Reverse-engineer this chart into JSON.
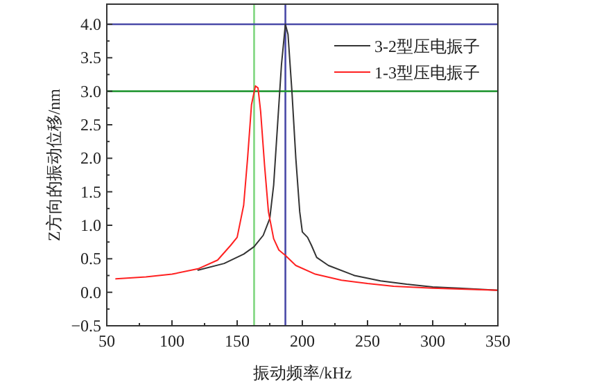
{
  "chart_data": {
    "type": "line",
    "xlabel": "振动频率/kHz",
    "ylabel": "Z方向的振动位移/nm",
    "xlim": [
      50,
      350
    ],
    "xticks": [
      50,
      100,
      150,
      200,
      250,
      300,
      350
    ],
    "ylim": [
      -0.5,
      4.3
    ],
    "yticks": [
      {
        "value": -0.5,
        "label": "−0.5"
      },
      {
        "value": 0,
        "label": "0.0"
      },
      {
        "value": 0.5,
        "label": "0.5"
      },
      {
        "value": 1,
        "label": "1.0"
      },
      {
        "value": 1.5,
        "label": "1.5"
      },
      {
        "value": 2,
        "label": "2.0"
      },
      {
        "value": 2.5,
        "label": "2.5"
      },
      {
        "value": 3,
        "label": "3.0"
      },
      {
        "value": 3.5,
        "label": "3.5"
      },
      {
        "value": 4,
        "label": "4.0"
      }
    ],
    "legend": "top right",
    "grid": false,
    "marker": "none",
    "line_style": "solid",
    "ref_lines": [
      {
        "axis": "x",
        "value": 163,
        "color": "#7fd67f"
      },
      {
        "axis": "x",
        "value": 187,
        "color": "#4a4aa8"
      },
      {
        "axis": "y",
        "value": 4.0,
        "color": "#4a4aa8"
      },
      {
        "axis": "y",
        "value": 3.0,
        "color": "#2a9a3a"
      }
    ],
    "series": [
      {
        "name": "3-2型压电振子",
        "color": "#333333",
        "x": [
          120,
          140,
          155,
          163,
          170,
          175,
          178,
          181,
          184,
          187,
          189,
          192,
          195,
          198,
          200,
          204,
          207,
          211,
          220,
          240,
          260,
          280,
          300,
          320,
          350
        ],
        "values": [
          0.33,
          0.43,
          0.57,
          0.68,
          0.85,
          1.1,
          1.6,
          2.5,
          3.4,
          4.0,
          3.85,
          3.0,
          2.0,
          1.2,
          0.9,
          0.82,
          0.7,
          0.52,
          0.4,
          0.25,
          0.17,
          0.12,
          0.08,
          0.06,
          0.03
        ]
      },
      {
        "name": "1-3型压电振子",
        "color": "#ff2020",
        "x": [
          57,
          80,
          100,
          120,
          135,
          145,
          150,
          155,
          158,
          161,
          164,
          166,
          168,
          171,
          174,
          178,
          182,
          187,
          195,
          210,
          230,
          250,
          270,
          300,
          350
        ],
        "values": [
          0.2,
          0.23,
          0.27,
          0.35,
          0.48,
          0.7,
          0.82,
          1.3,
          2.0,
          2.8,
          3.08,
          3.05,
          2.7,
          1.9,
          1.2,
          0.8,
          0.63,
          0.55,
          0.4,
          0.27,
          0.18,
          0.13,
          0.09,
          0.06,
          0.03
        ]
      }
    ]
  }
}
